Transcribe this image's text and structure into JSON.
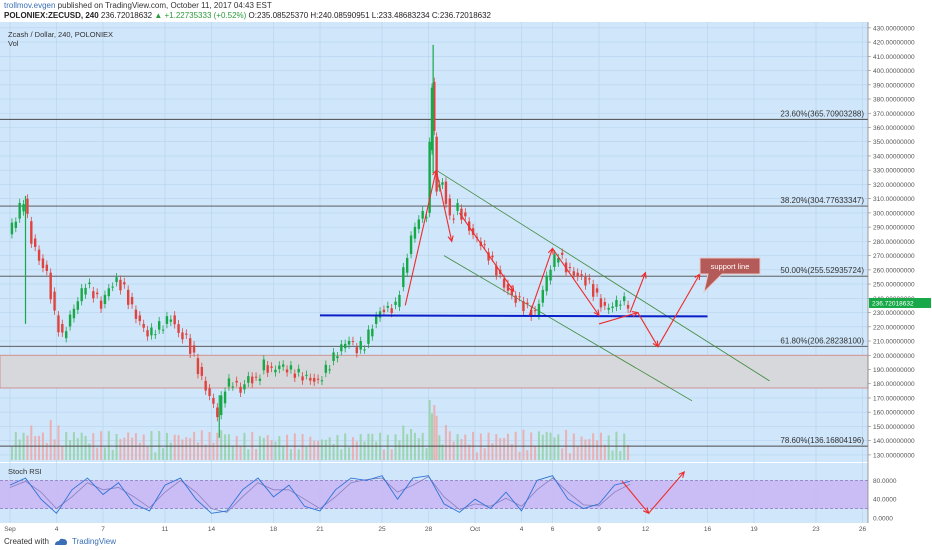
{
  "header": {
    "author": "trollmov.evgen",
    "published_text": "published on TradingView.com, October 11, 2017 04:43 EST",
    "symbol_line": "POLONIEX:ZECUSD, 240",
    "last_price": "236.72018632",
    "change_text": "▲ +1.22735333 (+0.52%)",
    "ohlc_text": "O:235.08525370 H:240.08590951 L:233.48683234 C:236.72018632"
  },
  "pane": {
    "title": "Zcash / Dollar, 240, POLONIEX",
    "vol_label": "Vol",
    "stoch_label": "Stoch RSI"
  },
  "footer": {
    "created_with": "Created with",
    "brand": "TradingView"
  },
  "annotation": {
    "text": "support line",
    "color": "#c0504d"
  },
  "colors": {
    "background": "#cfe6fb",
    "up_candle": "#17a948",
    "down_candle": "#e0433d",
    "support_line": "#0b1fc9",
    "fib_line": "#4a4a4a",
    "channel_line": "#3f8a3a",
    "arrow": "#ef2b2b",
    "rsi_band": "#c9b8f4",
    "rsi_line": "#2f73d6"
  },
  "chart_data": {
    "type": "candlestick",
    "symbol": "ZECUSD",
    "exchange": "POLONIEX",
    "interval": "240",
    "ylim": [
      125,
      432
    ],
    "price_ticks": [
      "430.00000000",
      "420.00000000",
      "410.00000000",
      "400.00000000",
      "390.00000000",
      "380.00000000",
      "370.00000000",
      "360.00000000",
      "350.00000000",
      "340.00000000",
      "330.00000000",
      "320.00000000",
      "310.00000000",
      "300.00000000",
      "290.00000000",
      "280.00000000",
      "270.00000000",
      "260.00000000",
      "250.00000000",
      "240.00000000",
      "230.00000000",
      "220.00000000",
      "210.00000000",
      "200.00000000",
      "190.00000000",
      "180.00000000",
      "170.00000000",
      "160.00000000",
      "150.00000000",
      "140.00000000",
      "130.00000000"
    ],
    "x_ticks": [
      "Sep",
      "4",
      "7",
      "11",
      "14",
      "18",
      "21",
      "25",
      "28",
      "Oct",
      "4",
      "6",
      "9",
      "12",
      "16",
      "19",
      "23",
      "26"
    ],
    "x_tick_days": [
      1,
      4,
      7,
      11,
      14,
      18,
      21,
      25,
      28,
      31,
      34,
      36,
      39,
      42,
      46,
      49,
      53,
      56
    ],
    "price_series_close": [
      [
        1,
        285
      ],
      [
        1.5,
        296
      ],
      [
        2,
        310
      ],
      [
        2.5,
        282
      ],
      [
        3,
        268
      ],
      [
        3.5,
        258
      ],
      [
        4,
        228
      ],
      [
        4.5,
        212
      ],
      [
        5,
        226
      ],
      [
        5.5,
        238
      ],
      [
        6,
        250
      ],
      [
        6.5,
        244
      ],
      [
        7,
        236
      ],
      [
        7.5,
        248
      ],
      [
        8,
        253
      ],
      [
        8.5,
        246
      ],
      [
        9,
        232
      ],
      [
        9.5,
        222
      ],
      [
        10,
        214
      ],
      [
        10.5,
        218
      ],
      [
        11,
        222
      ],
      [
        11.5,
        228
      ],
      [
        12,
        216
      ],
      [
        12.5,
        212
      ],
      [
        13,
        198
      ],
      [
        13.5,
        182
      ],
      [
        14,
        170
      ],
      [
        14.5,
        158
      ],
      [
        15,
        178
      ],
      [
        15.5,
        182
      ],
      [
        16,
        176
      ],
      [
        16.5,
        185
      ],
      [
        17,
        182
      ],
      [
        17.5,
        193
      ],
      [
        18,
        188
      ],
      [
        18.5,
        192
      ],
      [
        19,
        190
      ],
      [
        19.5,
        188
      ],
      [
        20,
        186
      ],
      [
        20.5,
        184
      ],
      [
        21,
        182
      ],
      [
        21.5,
        190
      ],
      [
        22,
        198
      ],
      [
        22.5,
        205
      ],
      [
        23,
        210
      ],
      [
        23.5,
        204
      ],
      [
        24,
        208
      ],
      [
        24.5,
        222
      ],
      [
        25,
        232
      ],
      [
        25.5,
        233
      ],
      [
        26,
        234
      ],
      [
        26.5,
        258
      ],
      [
        27,
        282
      ],
      [
        27.5,
        296
      ],
      [
        28,
        300
      ],
      [
        28.3,
        392
      ],
      [
        28.6,
        318
      ],
      [
        29,
        322
      ],
      [
        29.5,
        296
      ],
      [
        30,
        303
      ],
      [
        30.5,
        294
      ],
      [
        31,
        283
      ],
      [
        31.5,
        278
      ],
      [
        32,
        270
      ],
      [
        32.5,
        260
      ],
      [
        33,
        250
      ],
      [
        33.5,
        242
      ],
      [
        34,
        238
      ],
      [
        34.5,
        232
      ],
      [
        35,
        228
      ],
      [
        35.5,
        245
      ],
      [
        36,
        262
      ],
      [
        36.5,
        272
      ],
      [
        37,
        262
      ],
      [
        37.5,
        258
      ],
      [
        38,
        255
      ],
      [
        38.5,
        250
      ],
      [
        39,
        240
      ],
      [
        39.5,
        232
      ],
      [
        40,
        234
      ],
      [
        40.5,
        238
      ],
      [
        41,
        236.7
      ]
    ],
    "high_points": [
      [
        28.3,
        418
      ],
      [
        2,
        312
      ]
    ],
    "low_points": [
      [
        14.5,
        142
      ]
    ],
    "fib_levels": [
      {
        "label": "23.60%(365.70903288)",
        "value": 365.70903288
      },
      {
        "label": "38.20%(304.77633347)",
        "value": 304.77633347
      },
      {
        "label": "50.00%(255.52935724)",
        "value": 255.52935724
      },
      {
        "label": "61.80%(206.28238100)",
        "value": 206.282381
      },
      {
        "label": "78.60%(136.16804196)",
        "value": 136.16804196
      }
    ],
    "support_zone": [
      177,
      200
    ],
    "support_line": {
      "value": 228,
      "from_day": 21,
      "to_day": 46
    },
    "last_price_label": "236.72018632",
    "stoch_rsi": {
      "ticks": [
        "80.0000",
        "40.0000",
        "0.0000"
      ],
      "bands": [
        20,
        80
      ],
      "k": [
        [
          1,
          70
        ],
        [
          2,
          85
        ],
        [
          3,
          40
        ],
        [
          4,
          10
        ],
        [
          5,
          60
        ],
        [
          6,
          85
        ],
        [
          7,
          50
        ],
        [
          8,
          75
        ],
        [
          9,
          30
        ],
        [
          10,
          15
        ],
        [
          11,
          70
        ],
        [
          12,
          85
        ],
        [
          13,
          40
        ],
        [
          14,
          10
        ],
        [
          15,
          15
        ],
        [
          16,
          60
        ],
        [
          17,
          85
        ],
        [
          18,
          45
        ],
        [
          19,
          70
        ],
        [
          20,
          25
        ],
        [
          21,
          15
        ],
        [
          22,
          60
        ],
        [
          23,
          85
        ],
        [
          24,
          80
        ],
        [
          25,
          90
        ],
        [
          26,
          40
        ],
        [
          27,
          85
        ],
        [
          28,
          90
        ],
        [
          29,
          30
        ],
        [
          30,
          12
        ],
        [
          31,
          40
        ],
        [
          32,
          20
        ],
        [
          33,
          55
        ],
        [
          34,
          15
        ],
        [
          35,
          80
        ],
        [
          36,
          90
        ],
        [
          37,
          40
        ],
        [
          38,
          20
        ],
        [
          39,
          30
        ],
        [
          40,
          70
        ],
        [
          41,
          78
        ]
      ],
      "d": [
        [
          1,
          65
        ],
        [
          2,
          78
        ],
        [
          3,
          55
        ],
        [
          4,
          20
        ],
        [
          5,
          45
        ],
        [
          6,
          75
        ],
        [
          7,
          60
        ],
        [
          8,
          65
        ],
        [
          9,
          45
        ],
        [
          10,
          22
        ],
        [
          11,
          55
        ],
        [
          12,
          80
        ],
        [
          13,
          55
        ],
        [
          14,
          20
        ],
        [
          15,
          12
        ],
        [
          16,
          45
        ],
        [
          17,
          75
        ],
        [
          18,
          60
        ],
        [
          19,
          60
        ],
        [
          20,
          40
        ],
        [
          21,
          20
        ],
        [
          22,
          45
        ],
        [
          23,
          75
        ],
        [
          24,
          82
        ],
        [
          25,
          85
        ],
        [
          26,
          55
        ],
        [
          27,
          70
        ],
        [
          28,
          88
        ],
        [
          29,
          45
        ],
        [
          30,
          18
        ],
        [
          31,
          30
        ],
        [
          32,
          25
        ],
        [
          33,
          42
        ],
        [
          34,
          25
        ],
        [
          35,
          60
        ],
        [
          36,
          85
        ],
        [
          37,
          55
        ],
        [
          38,
          28
        ],
        [
          39,
          26
        ],
        [
          40,
          55
        ],
        [
          41,
          72
        ]
      ]
    }
  }
}
